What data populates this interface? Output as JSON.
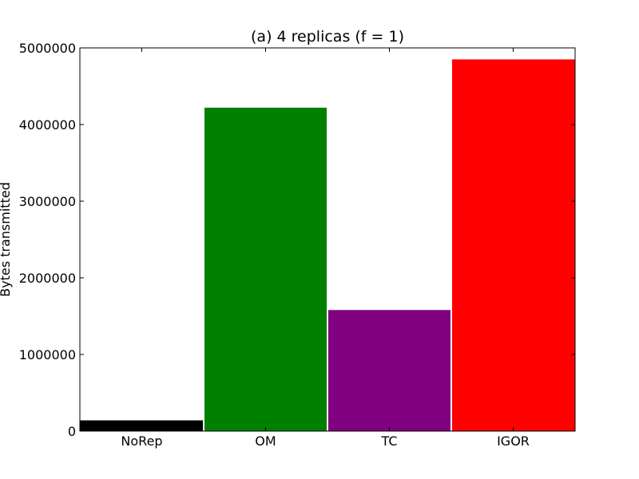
{
  "chart_data": {
    "type": "bar",
    "title": "(a) 4 replicas (f = 1)",
    "xlabel": "",
    "ylabel": "Bytes transmitted",
    "categories": [
      "NoRep",
      "OM",
      "TC",
      "IGOR"
    ],
    "values": [
      140000,
      4220000,
      1580000,
      4850000
    ],
    "colors": [
      "#000000",
      "#008000",
      "#800080",
      "#ff0000"
    ],
    "ylim": [
      0,
      5000000
    ],
    "yticks": [
      0,
      1000000,
      2000000,
      3000000,
      4000000,
      5000000
    ],
    "ytick_labels": [
      "0",
      "1000000",
      "2000000",
      "3000000",
      "4000000",
      "5000000"
    ],
    "grid": false,
    "legend": "none"
  }
}
